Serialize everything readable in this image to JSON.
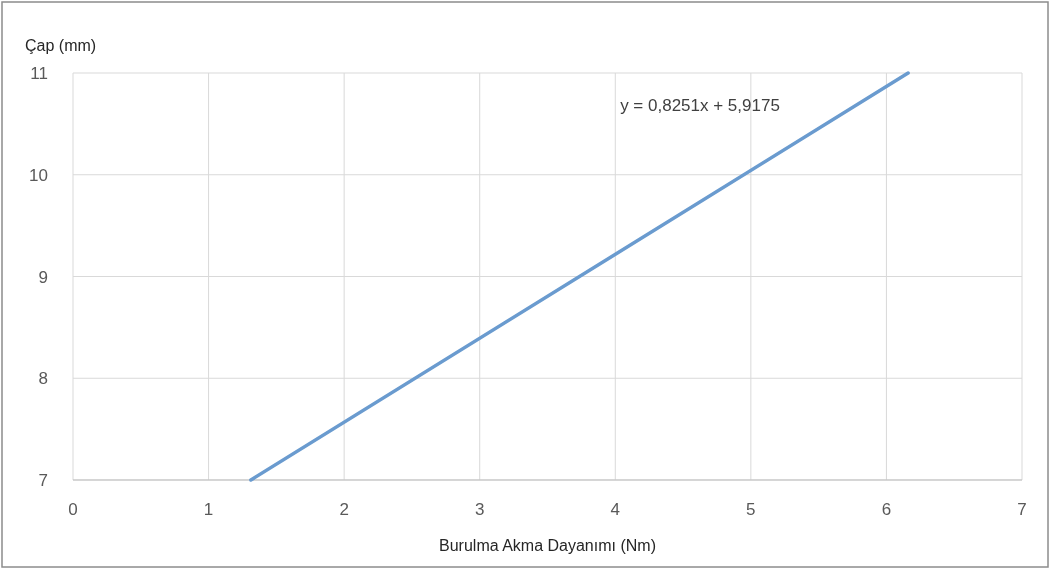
{
  "chart_data": {
    "type": "line",
    "xlabel": "Burulma Akma Dayanımı (Nm)",
    "ylabel": "Çap (mm)",
    "annotations": [
      "y = 0,8251x + 5,9175"
    ],
    "series": [
      {
        "color": "#6a9bcf",
        "x": [
          1.312,
          6.16
        ],
        "values": [
          7,
          11
        ]
      }
    ],
    "xlim": [
      0,
      7
    ],
    "xticks": [
      0,
      1,
      2,
      3,
      4,
      5,
      6,
      7
    ],
    "ylim": [
      7,
      11
    ],
    "yticks": [
      7,
      8,
      9,
      10,
      11
    ],
    "grid": true,
    "marker": "none",
    "line_style": "solid"
  }
}
